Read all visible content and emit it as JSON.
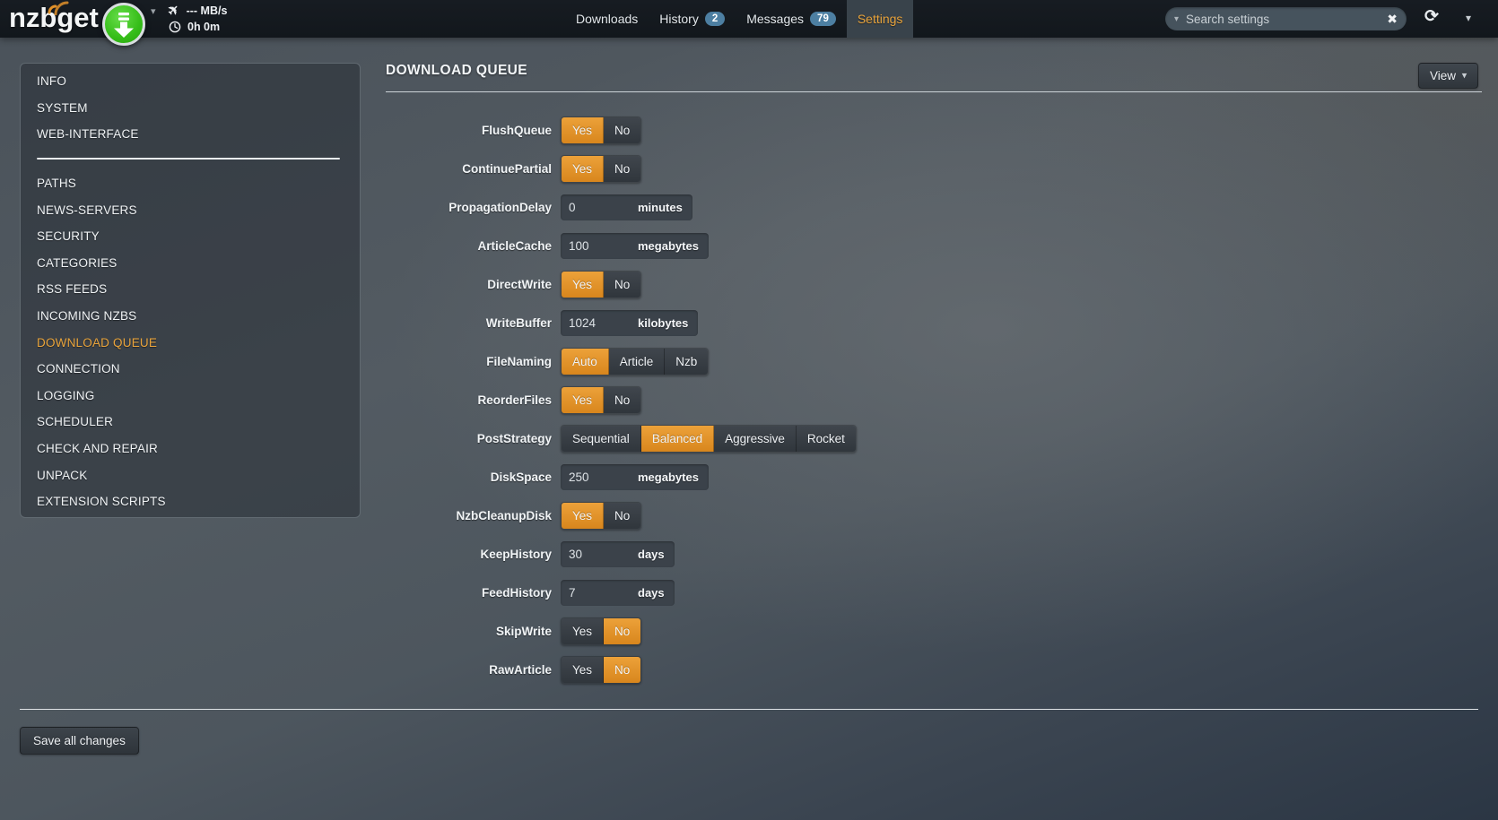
{
  "navbar": {
    "logo_text": "nzbget",
    "speed_label": "--- MB/s",
    "time_label": "0h 0m",
    "tabs": [
      {
        "label": "Downloads",
        "badge": "",
        "active": false
      },
      {
        "label": "History",
        "badge": "2",
        "active": false
      },
      {
        "label": "Messages",
        "badge": "79",
        "active": false
      },
      {
        "label": "Settings",
        "badge": "",
        "active": true
      }
    ],
    "search_placeholder": "Search settings"
  },
  "sidebar": {
    "top_items": [
      "INFO",
      "SYSTEM",
      "WEB-INTERFACE"
    ],
    "bottom_items": [
      "PATHS",
      "NEWS-SERVERS",
      "SECURITY",
      "CATEGORIES",
      "RSS FEEDS",
      "INCOMING NZBS",
      "DOWNLOAD QUEUE",
      "CONNECTION",
      "LOGGING",
      "SCHEDULER",
      "CHECK AND REPAIR",
      "UNPACK",
      "EXTENSION SCRIPTS"
    ],
    "active_item": "DOWNLOAD QUEUE"
  },
  "main": {
    "title": "DOWNLOAD QUEUE",
    "view_button_label": "View",
    "save_button_label": "Save all changes",
    "settings": [
      {
        "name": "FlushQueue",
        "type": "toggle",
        "options": [
          "Yes",
          "No"
        ],
        "selected": "Yes"
      },
      {
        "name": "ContinuePartial",
        "type": "toggle",
        "options": [
          "Yes",
          "No"
        ],
        "selected": "Yes"
      },
      {
        "name": "PropagationDelay",
        "type": "input",
        "value": "0",
        "unit": "minutes"
      },
      {
        "name": "ArticleCache",
        "type": "input",
        "value": "100",
        "unit": "megabytes"
      },
      {
        "name": "DirectWrite",
        "type": "toggle",
        "options": [
          "Yes",
          "No"
        ],
        "selected": "Yes"
      },
      {
        "name": "WriteBuffer",
        "type": "input",
        "value": "1024",
        "unit": "kilobytes"
      },
      {
        "name": "FileNaming",
        "type": "toggle",
        "options": [
          "Auto",
          "Article",
          "Nzb"
        ],
        "selected": "Auto"
      },
      {
        "name": "ReorderFiles",
        "type": "toggle",
        "options": [
          "Yes",
          "No"
        ],
        "selected": "Yes"
      },
      {
        "name": "PostStrategy",
        "type": "toggle",
        "options": [
          "Sequential",
          "Balanced",
          "Aggressive",
          "Rocket"
        ],
        "selected": "Balanced"
      },
      {
        "name": "DiskSpace",
        "type": "input",
        "value": "250",
        "unit": "megabytes"
      },
      {
        "name": "NzbCleanupDisk",
        "type": "toggle",
        "options": [
          "Yes",
          "No"
        ],
        "selected": "Yes"
      },
      {
        "name": "KeepHistory",
        "type": "input",
        "value": "30",
        "unit": "days"
      },
      {
        "name": "FeedHistory",
        "type": "input",
        "value": "7",
        "unit": "days"
      },
      {
        "name": "SkipWrite",
        "type": "toggle",
        "options": [
          "Yes",
          "No"
        ],
        "selected": "No"
      },
      {
        "name": "RawArticle",
        "type": "toggle",
        "options": [
          "Yes",
          "No"
        ],
        "selected": "No"
      }
    ]
  },
  "colors": {
    "accent_orange": "#e1912a",
    "active_text_orange": "#e8a33b",
    "badge_blue": "#4d7fa2",
    "start_button_green": "#35bd18"
  }
}
